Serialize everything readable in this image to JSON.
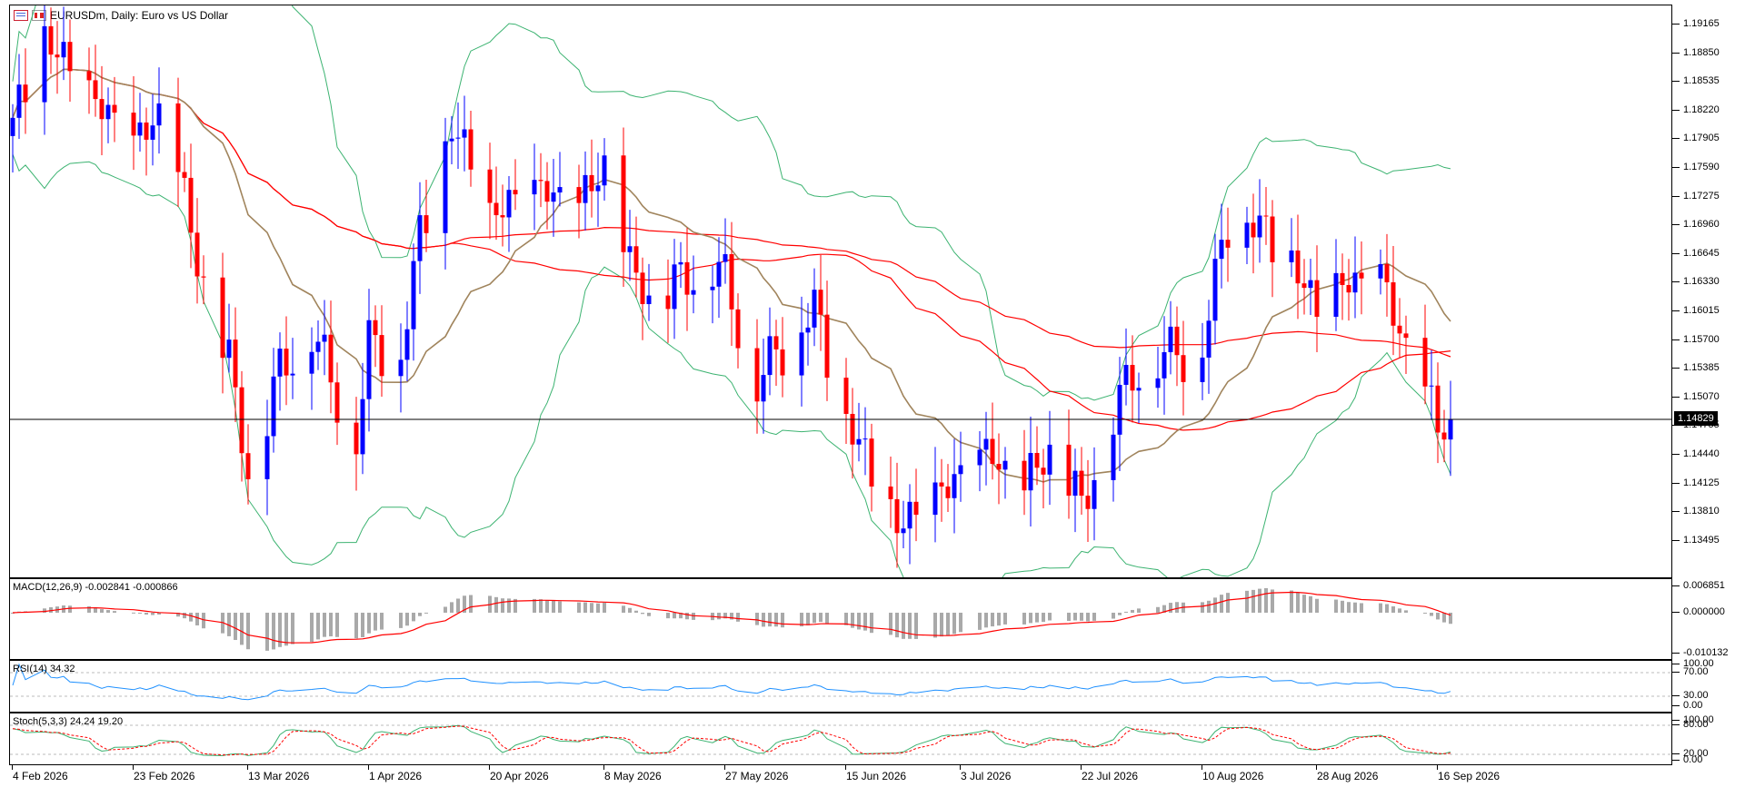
{
  "window": {
    "symbol_title": "EURUSDm, Daily:  Euro vs US Dollar",
    "icon_left": "list-icon",
    "icon_right": "chart-icon"
  },
  "colors": {
    "bull": "#0000ff",
    "bear": "#ff0000",
    "ma_fast": "#a0845c",
    "ma_slow": "#ff0000",
    "bollinger": "#3cb371",
    "macd_hist": "#a9a9a9",
    "macd_signal": "#ff0000",
    "rsi": "#1e90ff",
    "stoch_main": "#3cb371",
    "stoch_signal": "#ff0000"
  },
  "price": {
    "current_label": "1.14829",
    "current": 1.14829,
    "y_ticks": [
      "1.19165",
      "1.18850",
      "1.18535",
      "1.18220",
      "1.17905",
      "1.17590",
      "1.17275",
      "1.16960",
      "1.16645",
      "1.16330",
      "1.16015",
      "1.15700",
      "1.15385",
      "1.15070",
      "1.14755",
      "1.14440",
      "1.14125",
      "1.13810",
      "1.13495"
    ]
  },
  "x_axis": {
    "labels": [
      "4 Feb 2026",
      "23 Feb 2026",
      "13 Mar 2026",
      "1 Apr 2026",
      "20 Apr 2026",
      "8 May 2026",
      "27 May 2026",
      "15 Jun 2026",
      "3 Jul 2026",
      "22 Jul 2026",
      "10 Aug 2026",
      "28 Aug 2026",
      "16 Sep 2026"
    ]
  },
  "macd": {
    "label": "MACD(12,26,9) -0.002841 -0.000866",
    "y_ticks": [
      "0.006851",
      "0.000000",
      "-0.010132"
    ]
  },
  "rsi": {
    "label": "RSI(14) 34.32",
    "y_ticks": [
      "100.00",
      "70.00",
      "30.00",
      "0.00"
    ]
  },
  "stoch": {
    "label": "Stoch(5,3,3) 24.24 19.20",
    "y_ticks": [
      "100.00",
      "80.00",
      "20.00",
      "0.00"
    ]
  },
  "chart_data": {
    "type": "candlestick",
    "title": "EURUSDm, Daily:  Euro vs US Dollar",
    "series_name": "EURUSDm",
    "timeframe": "Daily",
    "ylim": [
      1.131,
      1.194
    ],
    "x_range": [
      "4 Feb 2026",
      "19 Sep 2026"
    ],
    "grid": false,
    "indicators": [
      "Moving averages",
      "Bollinger Bands",
      "MACD(12,26,9)",
      "RSI(14)",
      "Stoch(5,3,3)"
    ],
    "close_path": [
      {
        "date": "4 Feb 2026",
        "close": 1.18
      },
      {
        "date": "9 Feb 2026",
        "close": 1.19
      },
      {
        "date": "13 Feb 2026",
        "close": 1.186
      },
      {
        "date": "23 Feb 2026",
        "close": 1.178
      },
      {
        "date": "28 Feb 2026",
        "close": 1.182
      },
      {
        "date": "5 Mar 2026",
        "close": 1.165
      },
      {
        "date": "10 Mar 2026",
        "close": 1.154
      },
      {
        "date": "13 Mar 2026",
        "close": 1.142
      },
      {
        "date": "18 Mar 2026",
        "close": 1.153
      },
      {
        "date": "23 Mar 2026",
        "close": 1.158
      },
      {
        "date": "26 Mar 2026",
        "close": 1.152
      },
      {
        "date": "30 Mar 2026",
        "close": 1.146
      },
      {
        "date": "1 Apr 2026",
        "close": 1.156
      },
      {
        "date": "6 Apr 2026",
        "close": 1.155
      },
      {
        "date": "9 Apr 2026",
        "close": 1.168
      },
      {
        "date": "14 Apr 2026",
        "close": 1.18
      },
      {
        "date": "17 Apr 2026",
        "close": 1.176
      },
      {
        "date": "20 Apr 2026",
        "close": 1.17
      },
      {
        "date": "24 Apr 2026",
        "close": 1.172
      },
      {
        "date": "29 Apr 2026",
        "close": 1.173
      },
      {
        "date": "4 May 2026",
        "close": 1.171
      },
      {
        "date": "8 May 2026",
        "close": 1.176
      },
      {
        "date": "12 May 2026",
        "close": 1.164
      },
      {
        "date": "16 May 2026",
        "close": 1.161
      },
      {
        "date": "20 May 2026",
        "close": 1.163
      },
      {
        "date": "25 May 2026",
        "close": 1.165
      },
      {
        "date": "27 May 2026",
        "close": 1.163
      },
      {
        "date": "1 Jun 2026",
        "close": 1.152
      },
      {
        "date": "5 Jun 2026",
        "close": 1.156
      },
      {
        "date": "10 Jun 2026",
        "close": 1.16
      },
      {
        "date": "15 Jun 2026",
        "close": 1.148
      },
      {
        "date": "19 Jun 2026",
        "close": 1.142
      },
      {
        "date": "23 Jun 2026",
        "close": 1.136
      },
      {
        "date": "29 Jun 2026",
        "close": 1.139
      },
      {
        "date": "3 Jul 2026",
        "close": 1.142
      },
      {
        "date": "8 Jul 2026",
        "close": 1.144
      },
      {
        "date": "13 Jul 2026",
        "close": 1.14
      },
      {
        "date": "17 Jul 2026",
        "close": 1.145
      },
      {
        "date": "22 Jul 2026",
        "close": 1.138
      },
      {
        "date": "26 Jul 2026",
        "close": 1.147
      },
      {
        "date": "31 Jul 2026",
        "close": 1.154
      },
      {
        "date": "5 Aug 2026",
        "close": 1.155
      },
      {
        "date": "10 Aug 2026",
        "close": 1.156
      },
      {
        "date": "14 Aug 2026",
        "close": 1.17
      },
      {
        "date": "19 Aug 2026",
        "close": 1.169
      },
      {
        "date": "24 Aug 2026",
        "close": 1.165
      },
      {
        "date": "28 Aug 2026",
        "close": 1.16
      },
      {
        "date": "2 Sep 2026",
        "close": 1.163
      },
      {
        "date": "7 Sep 2026",
        "close": 1.163
      },
      {
        "date": "11 Sep 2026",
        "close": 1.156
      },
      {
        "date": "16 Sep 2026",
        "close": 1.147
      },
      {
        "date": "19 Sep 2026",
        "close": 1.14829
      }
    ]
  }
}
